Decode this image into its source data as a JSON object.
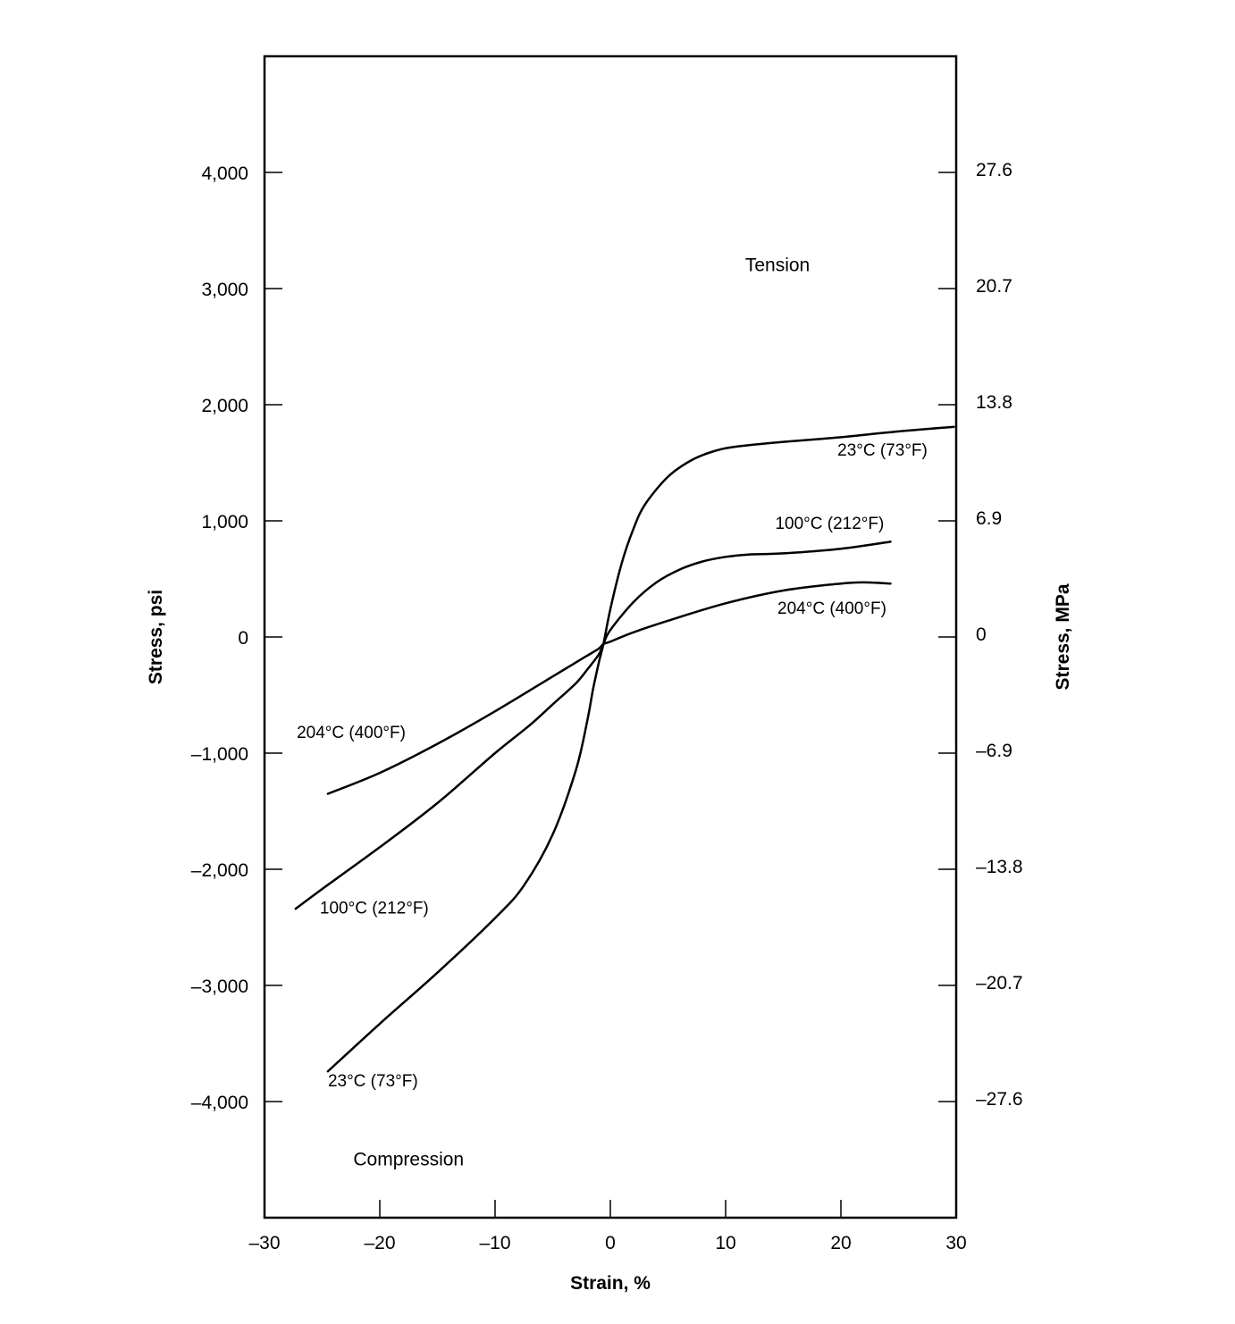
{
  "chart_data": {
    "type": "line",
    "xlabel": "Strain, %",
    "ylabel": "Stress, psi",
    "y2label": "Stress, MPa",
    "xlim": [
      -30,
      30
    ],
    "ylim": [
      -5000,
      5000
    ],
    "grid": false,
    "legend": "none",
    "x_ticks": [
      {
        "value": -30,
        "label": "–30"
      },
      {
        "value": -20,
        "label": "–20"
      },
      {
        "value": -10,
        "label": "–10"
      },
      {
        "value": 0,
        "label": "0"
      },
      {
        "value": 10,
        "label": "10"
      },
      {
        "value": 20,
        "label": "20"
      },
      {
        "value": 30,
        "label": "30"
      }
    ],
    "y_ticks": [
      {
        "value": 4000,
        "label": "4,000"
      },
      {
        "value": 3000,
        "label": "3,000"
      },
      {
        "value": 2000,
        "label": "2,000"
      },
      {
        "value": 1000,
        "label": "1,000"
      },
      {
        "value": 0,
        "label": "0"
      },
      {
        "value": -1000,
        "label": "–1,000"
      },
      {
        "value": -2000,
        "label": "–2,000"
      },
      {
        "value": -3000,
        "label": "–3,000"
      },
      {
        "value": -4000,
        "label": "–4,000"
      }
    ],
    "y2_ticks": [
      {
        "value": 4000,
        "label": "27.6"
      },
      {
        "value": 3000,
        "label": "20.7"
      },
      {
        "value": 2000,
        "label": "13.8"
      },
      {
        "value": 1000,
        "label": "6.9"
      },
      {
        "value": 0,
        "label": "0"
      },
      {
        "value": -1000,
        "label": "–6.9"
      },
      {
        "value": -2000,
        "label": "–13.8"
      },
      {
        "value": -3000,
        "label": "–20.7"
      },
      {
        "value": -4000,
        "label": "–27.6"
      }
    ],
    "annotations": [
      {
        "text": "Tension",
        "x": 14.5,
        "y": 3150
      },
      {
        "text": "Compression",
        "x": -17.5,
        "y": -4550
      }
    ],
    "series": [
      {
        "name": "23°C (73°F)",
        "x": [
          -24.5,
          -20,
          -15,
          -10,
          -7.5,
          -5,
          -3,
          -2,
          -1.5,
          -1,
          -0.6,
          0,
          1,
          2,
          3,
          5,
          7,
          9,
          11,
          15,
          20,
          25,
          29.8
        ],
        "y": [
          -3740,
          -3330,
          -2890,
          -2420,
          -2140,
          -1700,
          -1150,
          -720,
          -450,
          -220,
          -60,
          240,
          640,
          930,
          1140,
          1380,
          1520,
          1600,
          1640,
          1680,
          1720,
          1770,
          1810
        ]
      },
      {
        "name": "100°C (212°F)",
        "x": [
          -27.3,
          -25,
          -20,
          -15,
          -10,
          -7,
          -5,
          -3,
          -2,
          -1,
          -0.6,
          0,
          2,
          4,
          6,
          8,
          10,
          12,
          15,
          20,
          24.3
        ],
        "y": [
          -2340,
          -2170,
          -1810,
          -1430,
          -1000,
          -760,
          -580,
          -400,
          -280,
          -150,
          -60,
          60,
          300,
          470,
          580,
          650,
          690,
          710,
          720,
          760,
          820
        ]
      },
      {
        "name": "204°C (400°F)",
        "x": [
          -24.5,
          -20,
          -15,
          -10,
          -5,
          -3,
          -2,
          -1,
          -0.6,
          0,
          2,
          5,
          10,
          15,
          20,
          22,
          24.3
        ],
        "y": [
          -1350,
          -1170,
          -920,
          -640,
          -340,
          -220,
          -160,
          -100,
          -60,
          -40,
          40,
          140,
          290,
          400,
          460,
          470,
          460
        ]
      }
    ],
    "curve_labels": [
      {
        "text": "23°C (73°F)",
        "x": 19.7,
        "y": 1560
      },
      {
        "text": "100°C (212°F)",
        "x": 14.3,
        "y": 930
      },
      {
        "text": "204°C (400°F)",
        "x": 14.5,
        "y": 200
      },
      {
        "text": "204°C (400°F)",
        "x": -27.2,
        "y": -870
      },
      {
        "text": "100°C (212°F)",
        "x": -25.2,
        "y": -2380
      },
      {
        "text": "23°C (73°F)",
        "x": -24.5,
        "y": -3870
      }
    ]
  }
}
